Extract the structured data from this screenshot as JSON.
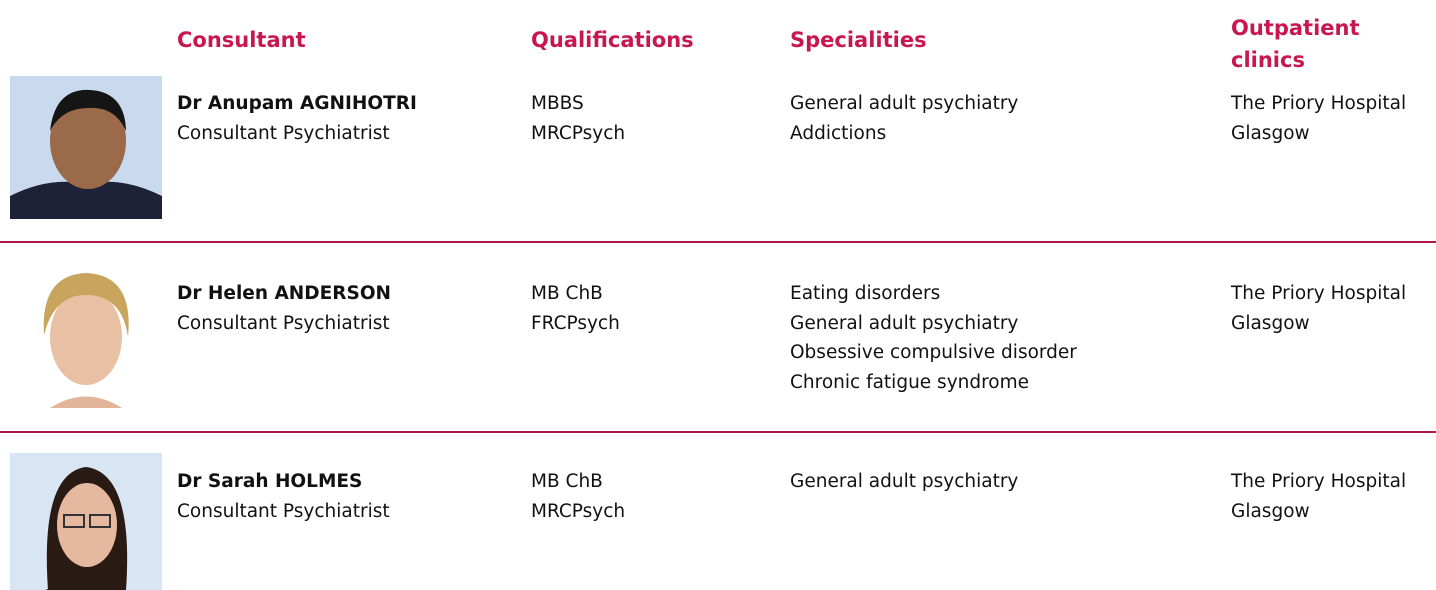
{
  "header": {
    "consultant": "Consultant",
    "qualifications": "Qualifications",
    "specialities": "Specialities",
    "clinics": "Outpatient clinics"
  },
  "rows": [
    {
      "name": "Dr Anupam AGNIHOTRI",
      "role": "Consultant Psychiatrist",
      "qualifications": [
        "MBBS",
        "MRCPsych"
      ],
      "specialities": [
        "General adult psychiatry",
        "Addictions"
      ],
      "clinics": [
        "The Priory Hospital",
        "Glasgow"
      ]
    },
    {
      "name": "Dr Helen ANDERSON",
      "role": "Consultant Psychiatrist",
      "qualifications": [
        "MB ChB",
        "FRCPsych"
      ],
      "specialities": [
        "Eating disorders",
        "General adult psychiatry",
        "Obsessive compulsive disorder",
        "Chronic fatigue syndrome"
      ],
      "clinics": [
        "The Priory Hospital",
        "Glasgow"
      ]
    },
    {
      "name": "Dr Sarah HOLMES",
      "role": "Consultant Psychiatrist",
      "qualifications": [
        "MB ChB",
        "MRCPsych"
      ],
      "specialities": [
        "General adult psychiatry"
      ],
      "clinics": [
        "The Priory Hospital",
        "Glasgow"
      ]
    }
  ]
}
